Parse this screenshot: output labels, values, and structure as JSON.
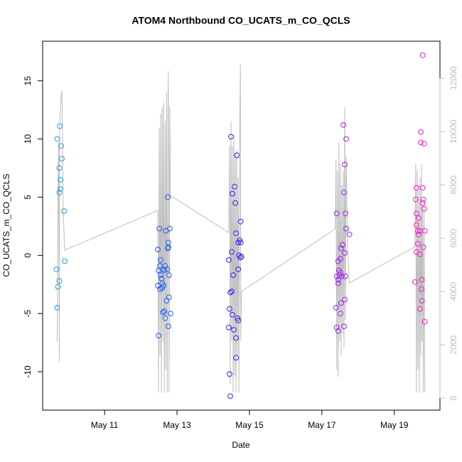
{
  "chart_data": {
    "type": "scatter",
    "title": "ATOM4 Northbound CO_UCATS_m_CO_QCLS",
    "xlabel": "Date",
    "ylabel": "CO_UCATS_m_CO_QCLS",
    "xlim": [
      9.29,
      20.26
    ],
    "ylim": [
      -13.3,
      18.4
    ],
    "y2lim": [
      -450,
      13390
    ],
    "xticks": [
      {
        "value": 11,
        "label": "May 11"
      },
      {
        "value": 13,
        "label": "May 13"
      },
      {
        "value": 15,
        "label": "May 15"
      },
      {
        "value": 17,
        "label": "May 17"
      },
      {
        "value": 19,
        "label": "May 19"
      }
    ],
    "yticks": [
      -10,
      -5,
      0,
      5,
      10,
      15
    ],
    "y2ticks": [
      0,
      2000,
      4000,
      6000,
      8000,
      10000,
      12000
    ],
    "series": [
      {
        "type": "line",
        "axis": "y2",
        "color": "#bebebe",
        "x": [
          9.69,
          9.71,
          9.73,
          9.75,
          9.76,
          9.8,
          9.82,
          9.84,
          9.86,
          9.9,
          12.47,
          12.49,
          12.51,
          12.53,
          12.55,
          12.57,
          12.59,
          12.61,
          12.63,
          12.65,
          12.67,
          12.69,
          12.71,
          12.73,
          12.75,
          12.76,
          12.78,
          12.8,
          12.82,
          14.43,
          14.45,
          14.47,
          14.49,
          14.51,
          14.53,
          14.55,
          14.57,
          14.59,
          14.61,
          14.63,
          14.65,
          14.67,
          14.69,
          14.71,
          14.73,
          14.75,
          14.76,
          14.78,
          17.37,
          17.39,
          17.41,
          17.43,
          17.45,
          17.47,
          17.49,
          17.51,
          17.53,
          17.55,
          17.57,
          17.59,
          17.61,
          17.63,
          17.65,
          17.67,
          17.71,
          17.76,
          19.57,
          19.59,
          19.61,
          19.63,
          19.65,
          19.67,
          19.69,
          19.71,
          19.73,
          19.75,
          19.76,
          19.78,
          19.8,
          19.82,
          19.84
        ],
        "values": [
          2130,
          6930,
          9600,
          1330,
          10270,
          11330,
          11550,
          9600,
          6930,
          5550,
          7040,
          210,
          10130,
          1600,
          10670,
          210,
          10930,
          2130,
          11070,
          210,
          10400,
          1070,
          11470,
          210,
          10670,
          12270,
          210,
          10930,
          7600,
          6210,
          9470,
          530,
          10400,
          2130,
          9470,
          210,
          9870,
          800,
          9200,
          210,
          9330,
          1600,
          8270,
          210,
          10130,
          12530,
          2130,
          4000,
          6350,
          8930,
          1070,
          8530,
          800,
          9600,
          2130,
          8800,
          1600,
          8000,
          2400,
          8530,
          1870,
          10930,
          2930,
          9070,
          5600,
          4320,
          5680,
          8800,
          210,
          8530,
          1070,
          8000,
          210,
          8270,
          1600,
          8800,
          2130,
          7200,
          210,
          7470,
          210
        ]
      },
      {
        "type": "scatter",
        "color": "#1e9be6",
        "x": [
          9.69,
          9.76,
          9.8,
          9.82,
          9.75,
          9.78,
          9.78,
          9.75,
          9.88,
          9.9,
          9.67,
          9.75,
          9.71,
          9.69
        ],
        "values": [
          10.0,
          11.1,
          9.4,
          8.3,
          7.5,
          6.5,
          5.7,
          5.4,
          3.8,
          -0.5,
          -1.2,
          -2.2,
          -2.7,
          -4.5
        ]
      },
      {
        "type": "scatter",
        "color": "#1f5cf0",
        "x": [
          12.75,
          12.51,
          12.69,
          12.8,
          12.47,
          12.76,
          12.76,
          12.75,
          12.55,
          12.53,
          12.67,
          12.61,
          12.49,
          12.65,
          12.73,
          12.55,
          12.78,
          12.57,
          12.59,
          12.47,
          12.63,
          12.59,
          12.53,
          12.78,
          12.71,
          12.65,
          12.61,
          12.82,
          12.67,
          12.76,
          12.49
        ],
        "values": [
          5.0,
          2.3,
          2.1,
          2.3,
          0.5,
          1.1,
          0.7,
          0.6,
          -0.4,
          -0.9,
          -0.9,
          -1.2,
          -1.3,
          -1.3,
          -1.2,
          -1.7,
          -1.7,
          -2.0,
          -2.4,
          -2.6,
          -2.6,
          -2.8,
          -2.9,
          -3.6,
          -3.9,
          -4.8,
          -4.9,
          -5.0,
          -5.4,
          -6.1,
          -6.9
        ]
      },
      {
        "type": "scatter",
        "color": "#3c1ef0",
        "x": [
          14.49,
          14.65,
          14.59,
          14.53,
          14.61,
          14.76,
          14.63,
          14.73,
          14.69,
          14.76,
          14.51,
          14.71,
          14.78,
          14.75,
          14.43,
          14.69,
          14.55,
          14.51,
          14.47,
          14.45,
          14.53,
          14.67,
          14.69,
          14.43,
          14.57,
          14.63,
          14.63,
          14.45,
          14.47
        ],
        "values": [
          10.2,
          8.6,
          5.9,
          5.3,
          4.5,
          2.9,
          1.9,
          1.3,
          1.1,
          1.1,
          0.3,
          0.0,
          -0.1,
          -0.2,
          -0.4,
          -1.2,
          -1.7,
          -3.1,
          -3.2,
          -4.6,
          -5.1,
          -5.4,
          -5.6,
          -6.2,
          -6.4,
          -7.1,
          -8.8,
          -10.2,
          -12.1
        ]
      },
      {
        "type": "scatter",
        "color": "#a020f0",
        "x": [
          17.59,
          17.67,
          17.63,
          17.61,
          17.41,
          17.65,
          17.67,
          17.76,
          17.57,
          17.53,
          17.63,
          17.51,
          17.45,
          17.47,
          17.51,
          17.49,
          17.55,
          17.41,
          17.65,
          17.45,
          17.45,
          17.63,
          17.53,
          17.39,
          17.51,
          17.61,
          17.41,
          17.45
        ],
        "values": [
          11.2,
          10.0,
          7.8,
          5.4,
          3.6,
          3.6,
          2.3,
          1.8,
          0.9,
          0.6,
          0.2,
          -0.3,
          -0.5,
          -1.3,
          -1.5,
          -1.7,
          -1.8,
          -1.8,
          -1.8,
          -2.1,
          -2.4,
          -3.8,
          -4.1,
          -4.5,
          -5.0,
          -6.1,
          -6.2,
          -6.5
        ]
      },
      {
        "type": "scatter",
        "color": "#f020c8",
        "x": [
          19.78,
          19.73,
          19.73,
          19.82,
          19.61,
          19.78,
          19.59,
          19.8,
          19.78,
          19.82,
          19.61,
          19.67,
          19.61,
          19.71,
          19.65,
          19.84,
          19.67,
          19.65,
          19.8,
          19.61,
          19.71,
          19.76,
          19.57,
          19.75,
          19.76,
          19.71,
          19.84
        ],
        "values": [
          17.2,
          10.6,
          9.7,
          9.6,
          5.8,
          5.8,
          4.8,
          4.8,
          4.5,
          4.0,
          3.6,
          3.2,
          2.6,
          2.1,
          2.1,
          2.1,
          1.8,
          1.0,
          0.7,
          0.3,
          0.1,
          -2.1,
          -2.3,
          -2.9,
          -3.9,
          -4.6,
          -5.7
        ]
      }
    ]
  }
}
